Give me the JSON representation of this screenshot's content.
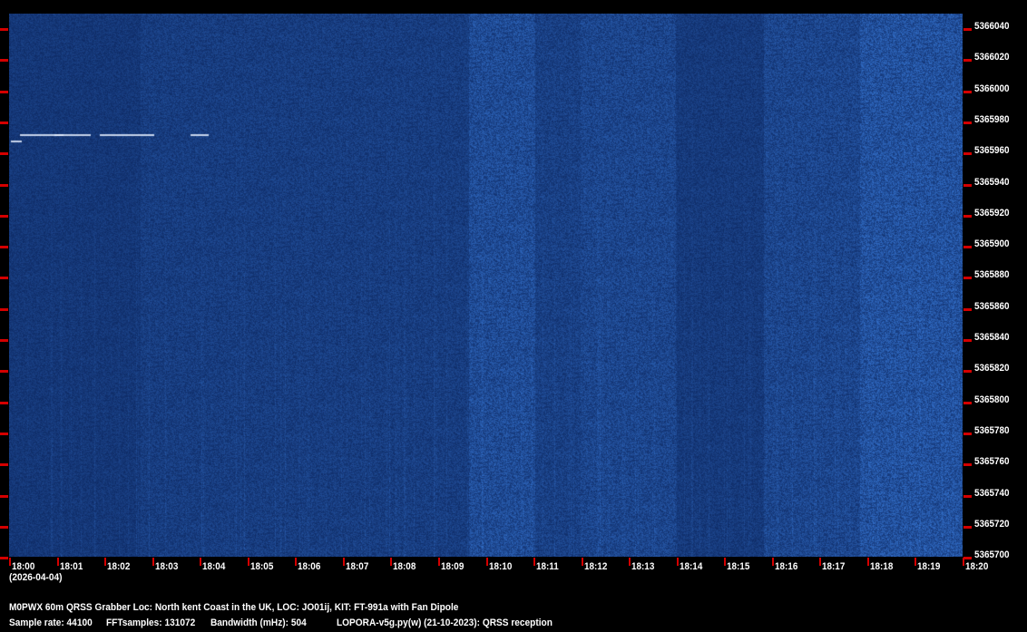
{
  "frequency_axis": {
    "labels": [
      "5366040",
      "5366020",
      "5366000",
      "5365980",
      "5365960",
      "5365940",
      "5365920",
      "5365900",
      "5365880",
      "5365860",
      "5365840",
      "5365820",
      "5365800",
      "5365780",
      "5365760",
      "5365740",
      "5365720",
      "5365700"
    ]
  },
  "time_axis": {
    "labels": [
      "18:00",
      "18:01",
      "18:02",
      "18:03",
      "18:04",
      "18:05",
      "18:06",
      "18:07",
      "18:08",
      "18:09",
      "18:10",
      "18:11",
      "18:12",
      "18:13",
      "18:14",
      "18:15",
      "18:16",
      "18:17",
      "18:18",
      "18:19",
      "18:20"
    ],
    "date": "(2026-04-04)"
  },
  "info": {
    "station": "M0PWX 60m QRSS Grabber Loc: North kent Coast in the UK, LOC: JO01ij, KIT: FT-991a with Fan Dipole",
    "sample_rate": "Sample rate: 44100",
    "fft_samples": "FFTsamples: 131072",
    "bandwidth": "Bandwidth (mHz): 504",
    "software": "LOPORA-v5g.py(w) (21-10-2023): QRSS reception"
  },
  "colors": {
    "background": "#000000",
    "tick": "#d40000",
    "spectrogram": "#0b2f78"
  }
}
